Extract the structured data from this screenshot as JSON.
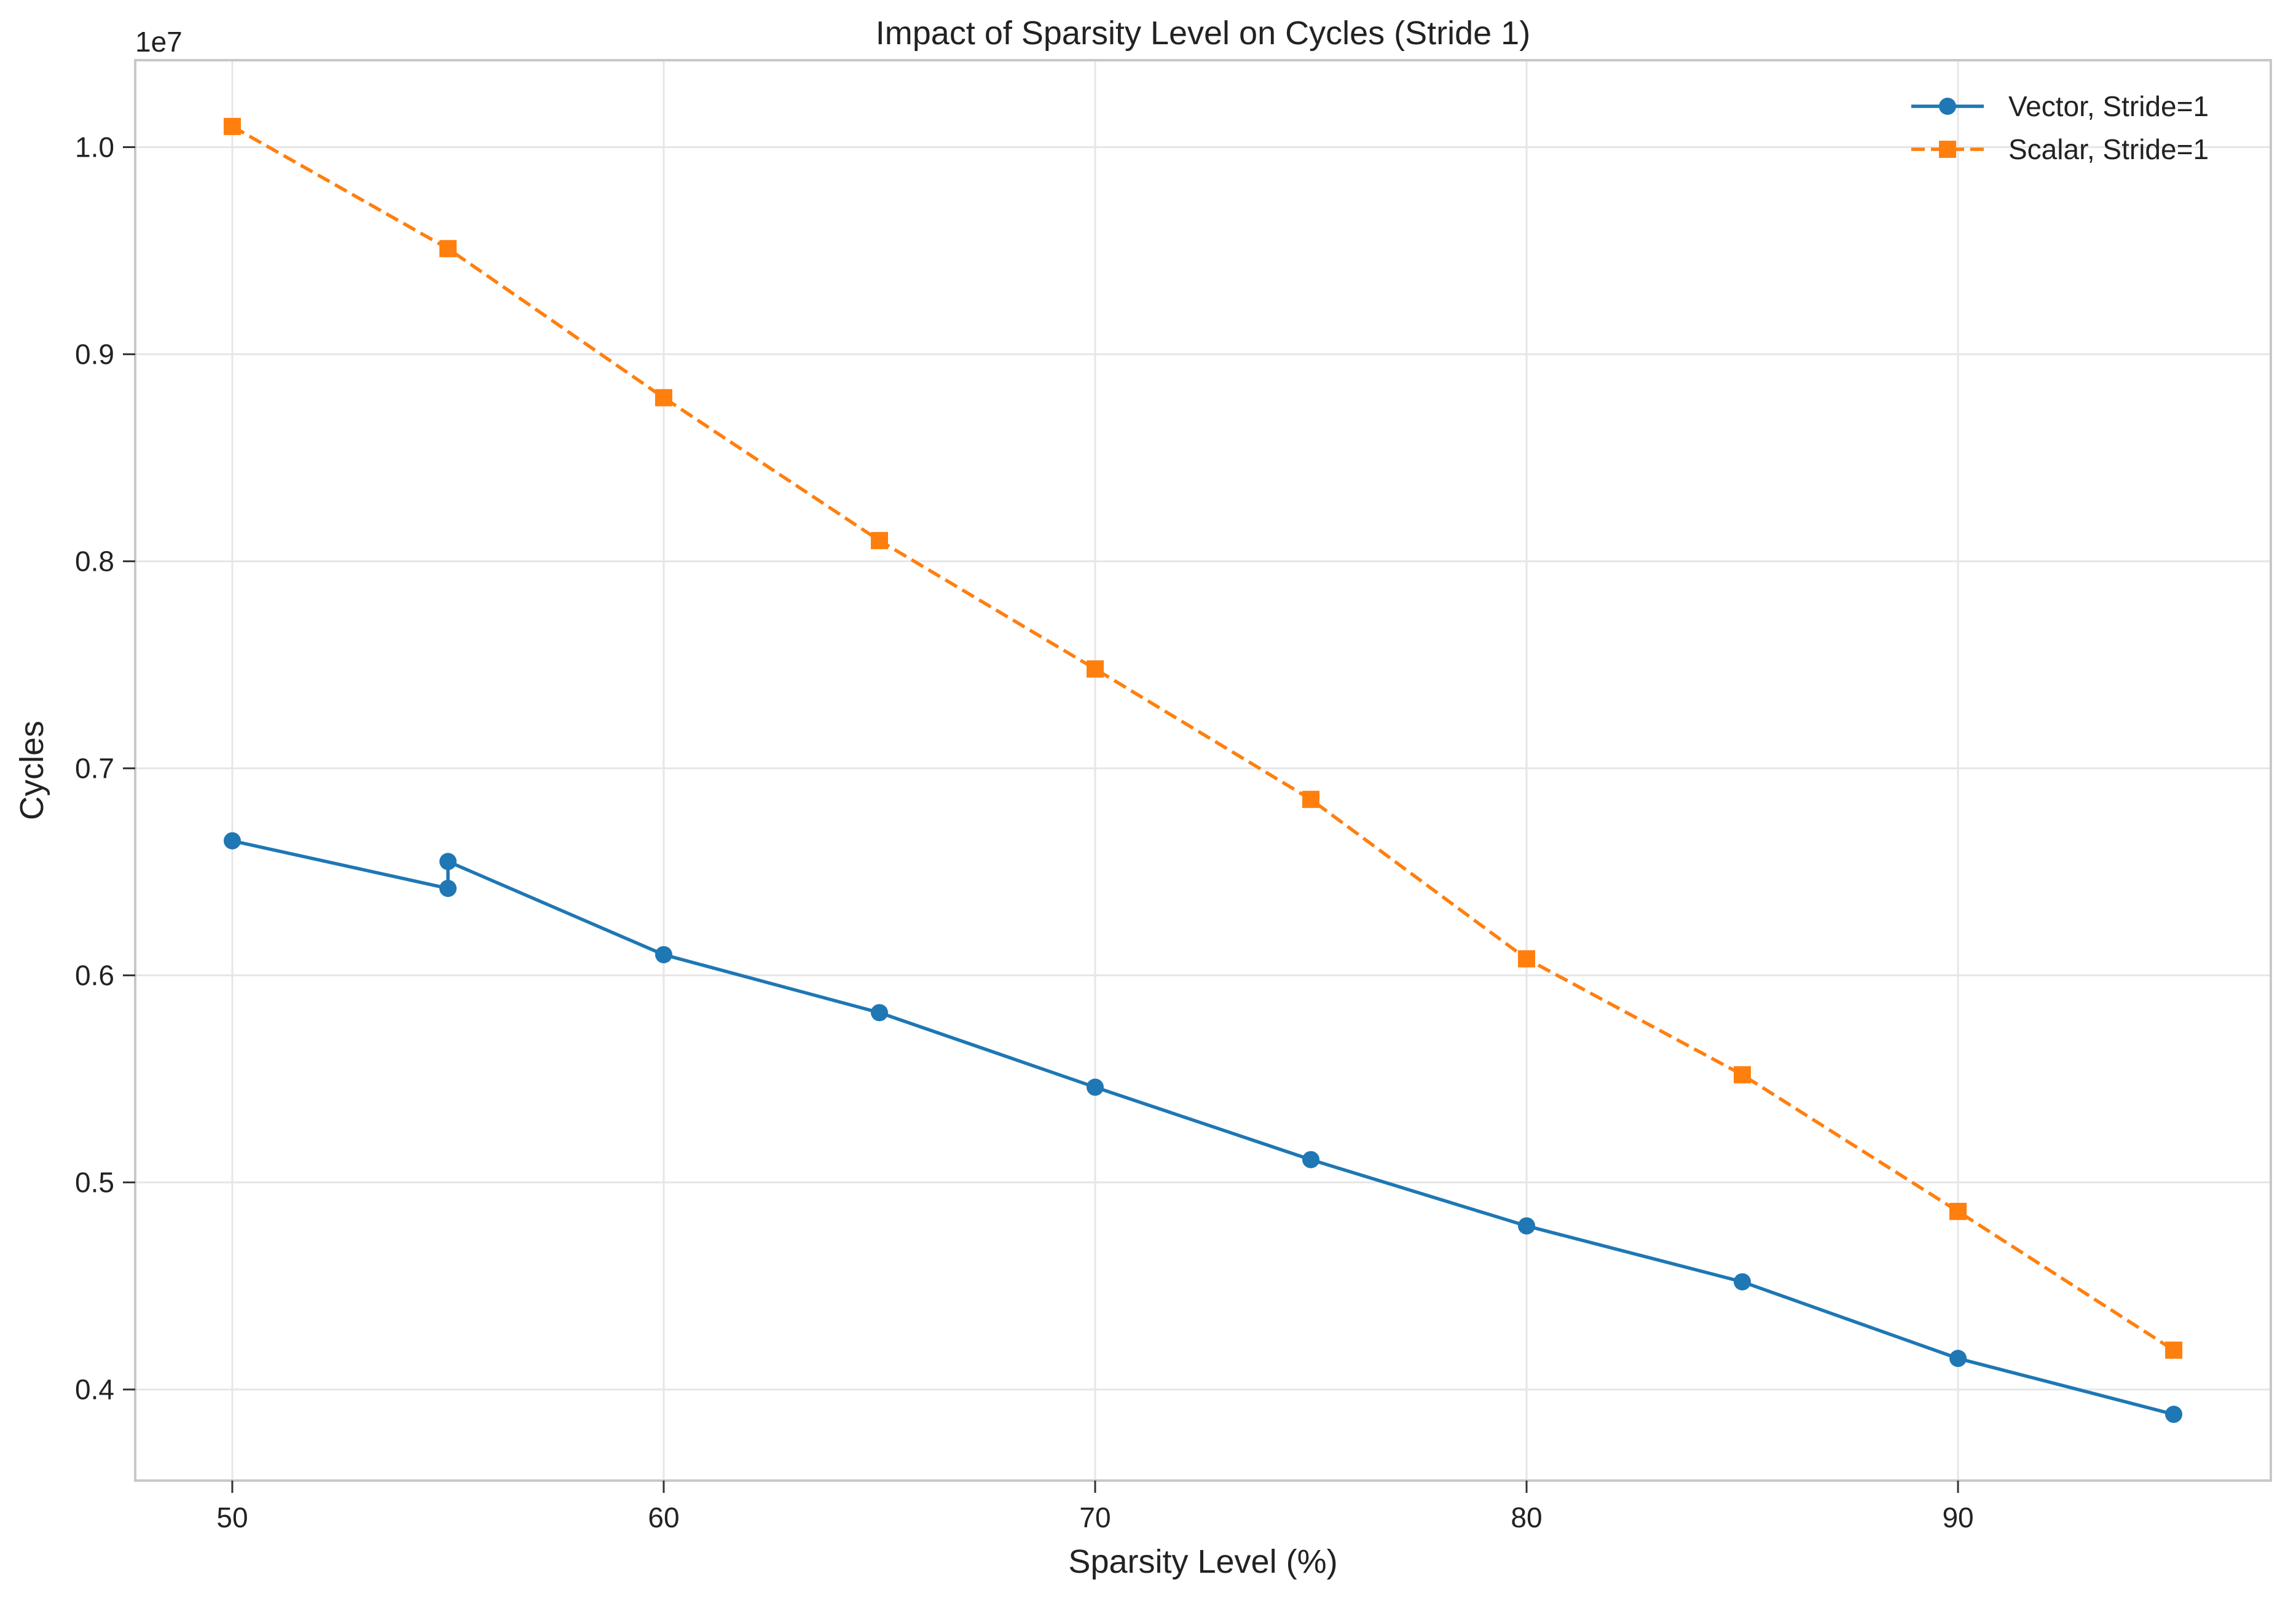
{
  "chart_data": {
    "type": "line",
    "title": "Impact of Sparsity Level on Cycles (Stride 1)",
    "xlabel": "Sparsity Level (%)",
    "ylabel": "Cycles",
    "y_offset_label": "1e7",
    "xlim": [
      47.75,
      97.25
    ],
    "ylim": [
      3.56,
      10.42
    ],
    "x_ticks": [
      50,
      60,
      70,
      80,
      90
    ],
    "x_tick_labels": [
      "50",
      "60",
      "70",
      "80",
      "90"
    ],
    "y_ticks": [
      4,
      5,
      6,
      7,
      8,
      9,
      10
    ],
    "y_tick_labels": [
      "0.4",
      "0.5",
      "0.6",
      "0.7",
      "0.8",
      "0.9",
      "1.0"
    ],
    "y_units": "millions of cycles (tick labels in units of 1e7)",
    "grid": true,
    "legend_position": "top-right",
    "series": [
      {
        "name": "Vector, Stride=1",
        "color": "#1f77b4",
        "line_style": "solid",
        "marker": "circle",
        "x": [
          50,
          55,
          55,
          60,
          65,
          70,
          75,
          80,
          85,
          90,
          95
        ],
        "y": [
          6.65,
          6.42,
          6.55,
          6.1,
          5.82,
          5.46,
          5.11,
          4.79,
          4.52,
          4.15,
          3.88
        ]
      },
      {
        "name": "Scalar, Stride=1",
        "color": "#ff7f0e",
        "line_style": "dashed",
        "marker": "square",
        "x": [
          50,
          55,
          60,
          65,
          70,
          75,
          80,
          85,
          90,
          95
        ],
        "y": [
          10.1,
          9.51,
          8.79,
          8.1,
          7.48,
          6.85,
          6.08,
          5.52,
          4.86,
          4.19
        ]
      }
    ]
  }
}
